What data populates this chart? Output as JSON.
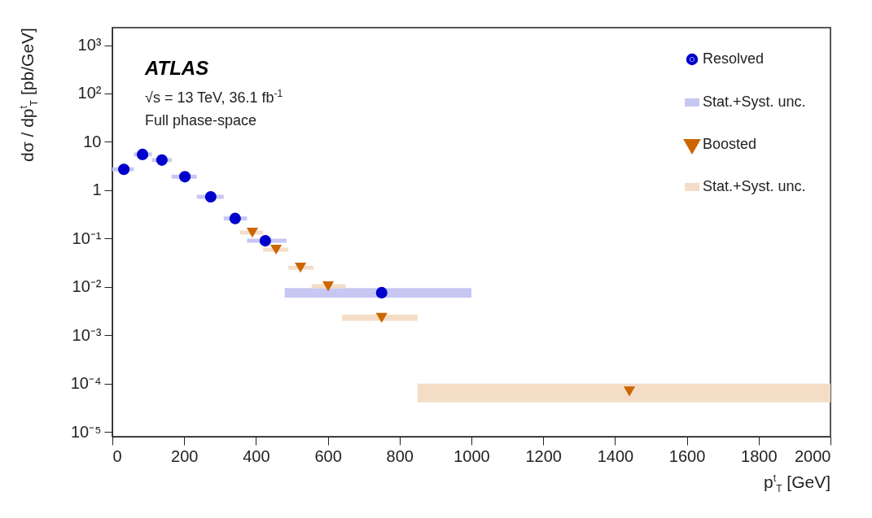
{
  "chart_data": {
    "type": "scatter",
    "xlabel": "p$^{t}$$_{T}$ [GeV]",
    "ylabel": "dσ / dp$^{t}$$_{T}$ [pb/GeV]",
    "annotations": [
      "ATLAS",
      "√s = 13 TeV, 36.1 fb$^{-1}$",
      "Full phase-space",
      "Stat.+Syst. unc.",
      "Stat.+Syst. unc."
    ],
    "log": "y",
    "xlim": [
      0,
      2000
    ],
    "xticks": [
      0,
      200,
      400,
      600,
      800,
      {
        "value": 1000,
        "label": "1000"
      },
      {
        "value": 1200,
        "label": "1200"
      },
      {
        "value": 1400,
        "label": "1400"
      },
      {
        "value": 1600,
        "label": "1600"
      },
      {
        "value": 1800,
        "label": "1800"
      },
      {
        "value": 2000,
        "label": "2000"
      }
    ],
    "ylim": [
      8e-06,
      2300
    ],
    "yticks": [
      {
        "value": 1e-05,
        "label": "10⁻⁵"
      },
      {
        "value": 0.0001,
        "label": "10⁻⁴"
      },
      {
        "value": 0.001,
        "label": "10⁻³"
      },
      {
        "value": 0.01,
        "label": "10⁻²"
      },
      {
        "value": 0.1,
        "label": "10⁻¹"
      },
      1,
      10,
      {
        "value": 100,
        "label": "10²"
      },
      {
        "value": 1000,
        "label": "10³"
      }
    ],
    "legend": "top right",
    "series": [
      {
        "name": "Resolved",
        "color": "#0000cc",
        "marker": "circle",
        "x": [
          32,
          84,
          138,
          202,
          274,
          342,
          426,
          750
        ],
        "values": [
          2.7,
          5.5,
          4.2,
          1.9,
          0.73,
          0.26,
          0.09,
          0.0076
        ],
        "xerrors": [
          [
            0,
            60
          ],
          [
            60,
            110
          ],
          [
            110,
            165
          ],
          [
            165,
            235
          ],
          [
            235,
            310
          ],
          [
            310,
            375
          ],
          [
            375,
            485
          ],
          [
            480,
            1000
          ]
        ],
        "errors": [
          null,
          null,
          null,
          null,
          null,
          null,
          null,
          [
            0.006,
            0.0095
          ]
        ]
      },
      {
        "name": "Boosted",
        "color": "#cc6600",
        "marker": "triangle",
        "x": [
          390,
          456,
          524,
          601,
          750,
          1440
        ],
        "values": [
          0.133,
          0.059,
          0.025,
          0.0103,
          0.0023,
          6.9e-05
        ],
        "xerrors": [
          [
            355,
            420
          ],
          [
            420,
            490
          ],
          [
            490,
            560
          ],
          [
            555,
            650
          ],
          [
            640,
            850
          ],
          [
            850,
            2000
          ]
        ],
        "errors": [
          null,
          null,
          null,
          null,
          [
            0.002,
            0.0027
          ],
          [
            4.1e-05,
            0.0001
          ]
        ]
      }
    ]
  }
}
